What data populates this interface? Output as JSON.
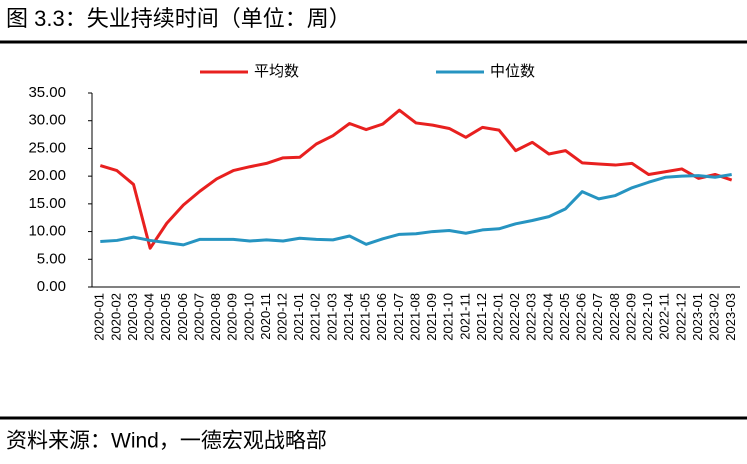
{
  "chart_data": {
    "type": "line",
    "title": "图 3.3：失业持续时间（单位：周）",
    "source": "资料来源：Wind，一德宏观战略部",
    "categories": [
      "2020-01",
      "2020-02",
      "2020-03",
      "2020-04",
      "2020-05",
      "2020-06",
      "2020-07",
      "2020-08",
      "2020-09",
      "2020-10",
      "2020-11",
      "2020-12",
      "2021-01",
      "2021-02",
      "2021-03",
      "2021-04",
      "2021-05",
      "2021-06",
      "2021-07",
      "2021-08",
      "2021-09",
      "2021-10",
      "2021-11",
      "2021-12",
      "2022-01",
      "2022-02",
      "2022-03",
      "2022-04",
      "2022-05",
      "2022-06",
      "2022-07",
      "2022-08",
      "2022-09",
      "2022-10",
      "2022-11",
      "2022-12",
      "2023-01",
      "2023-02",
      "2023-03"
    ],
    "series": [
      {
        "name": "平均数",
        "color": "#e8201f",
        "values": [
          21.9,
          21.0,
          18.5,
          7.0,
          11.5,
          14.8,
          17.3,
          19.5,
          21.0,
          21.7,
          22.3,
          23.3,
          23.4,
          25.8,
          27.3,
          29.5,
          28.4,
          29.4,
          31.9,
          29.6,
          29.2,
          28.6,
          27.0,
          28.8,
          28.3,
          24.6,
          26.1,
          24.0,
          24.6,
          22.4,
          22.2,
          22.0,
          22.3,
          20.3,
          20.8,
          21.3,
          19.6,
          20.3,
          19.3
        ]
      },
      {
        "name": "中位数",
        "color": "#2694c1",
        "values": [
          8.2,
          8.4,
          9.0,
          8.4,
          8.0,
          7.6,
          8.6,
          8.6,
          8.6,
          8.3,
          8.5,
          8.3,
          8.8,
          8.6,
          8.5,
          9.2,
          7.7,
          8.7,
          9.5,
          9.6,
          10.0,
          10.2,
          9.7,
          10.3,
          10.5,
          11.4,
          12.0,
          12.7,
          14.1,
          17.2,
          15.9,
          16.5,
          17.9,
          18.9,
          19.8,
          20.0,
          20.1,
          19.8,
          20.3
        ]
      }
    ],
    "ylim": [
      0,
      35
    ],
    "yticks": [
      {
        "value": 0,
        "label": "0.00"
      },
      {
        "value": 5,
        "label": "5.00"
      },
      {
        "value": 10,
        "label": "10.00"
      },
      {
        "value": 15,
        "label": "15.00"
      },
      {
        "value": 20,
        "label": "20.00"
      },
      {
        "value": 25,
        "label": "25.00"
      },
      {
        "value": 30,
        "label": "30.00"
      },
      {
        "value": 35,
        "label": "35.00"
      }
    ]
  }
}
